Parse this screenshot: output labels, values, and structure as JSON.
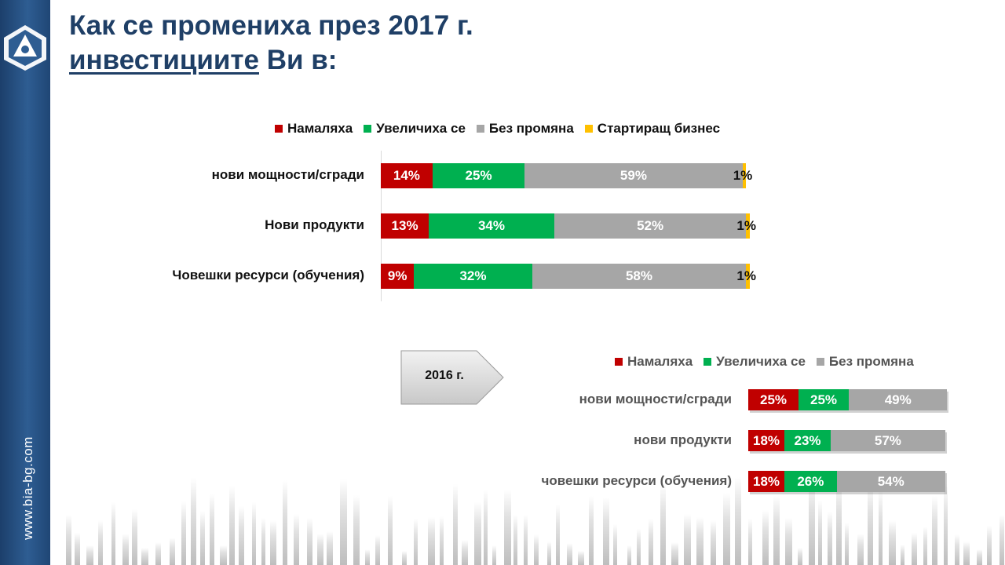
{
  "site": "www.bia-bg.com",
  "title": {
    "line1": "Как се промениха през 2017 г.",
    "line2_underlined": "инвестициите",
    "line2_rest": " Ви в:"
  },
  "colors": {
    "decreased": "#c00000",
    "increased": "#00b050",
    "unchanged": "#a6a6a6",
    "startup": "#ffc000",
    "title": "#1f3f66",
    "sidebar": "#2e5d92"
  },
  "arrow_label": "2016 г.",
  "chart_data": [
    {
      "type": "bar",
      "orientation": "horizontal",
      "stacked": true,
      "percent": true,
      "categories": [
        "нови мощности/сгради",
        "Нови продукти",
        "Човешки ресурси (обучения)"
      ],
      "series": [
        {
          "name": "Намаляха",
          "color": "#c00000",
          "values": [
            14,
            13,
            9
          ],
          "labels": [
            "14%",
            "13%",
            "9%"
          ]
        },
        {
          "name": "Увеличиха се",
          "color": "#00b050",
          "values": [
            25,
            34,
            32
          ],
          "labels": [
            "25%",
            "34%",
            "32%"
          ]
        },
        {
          "name": "Без промяна",
          "color": "#a6a6a6",
          "values": [
            59,
            52,
            58
          ],
          "labels": [
            "59%",
            "52%",
            "58%"
          ]
        },
        {
          "name": "Стартиращ бизнес",
          "color": "#ffc000",
          "values": [
            1,
            1,
            1
          ],
          "labels": [
            "1%",
            "1%",
            "1%"
          ]
        }
      ],
      "legend": "top",
      "xlim": [
        0,
        100
      ]
    },
    {
      "type": "bar",
      "orientation": "horizontal",
      "stacked": true,
      "percent": true,
      "categories": [
        "нови мощности/сгради",
        "нови продукти",
        "човешки ресурси (обучения)"
      ],
      "series": [
        {
          "name": "Намаляха",
          "color": "#c00000",
          "values": [
            25,
            18,
            18
          ],
          "labels": [
            "25%",
            "18%",
            "18%"
          ]
        },
        {
          "name": "Увеличиха се",
          "color": "#00b050",
          "values": [
            25,
            23,
            26
          ],
          "labels": [
            "25%",
            "23%",
            "26%"
          ]
        },
        {
          "name": "Без промяна",
          "color": "#a6a6a6",
          "values": [
            49,
            57,
            54
          ],
          "labels": [
            "49%",
            "57%",
            "54%"
          ]
        }
      ],
      "legend": "top",
      "xlim": [
        0,
        100
      ]
    }
  ]
}
